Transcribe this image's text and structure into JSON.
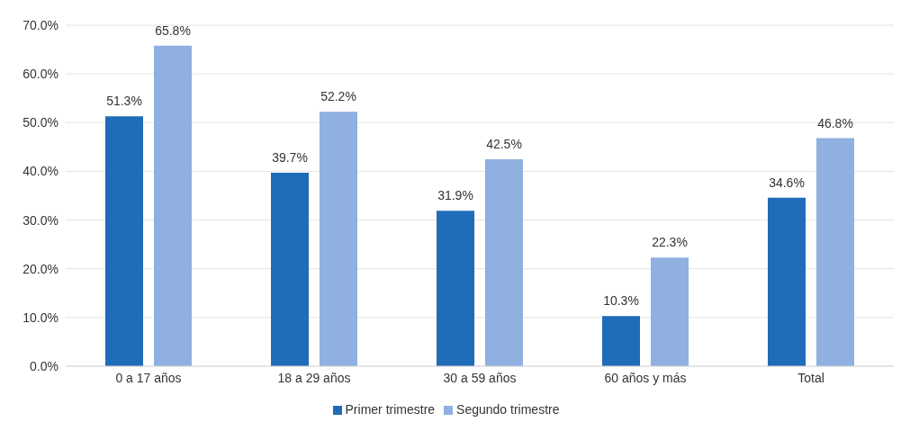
{
  "chart_data": {
    "type": "bar",
    "categories": [
      "0 a 17 años",
      "18 a 29 años",
      "30 a 59 años",
      "60 años y más",
      "Total"
    ],
    "series": [
      {
        "name": "Primer trimestre",
        "color": "#1f6cb9",
        "values": [
          51.3,
          39.7,
          31.9,
          10.3,
          34.6
        ],
        "value_labels": [
          "51.3%",
          "39.7%",
          "31.9%",
          "10.3%",
          "34.6%"
        ]
      },
      {
        "name": "Segundo trimestre",
        "color": "#8fb0e0",
        "values": [
          65.8,
          52.2,
          42.5,
          22.3,
          46.8
        ],
        "value_labels": [
          "65.8%",
          "52.2%",
          "42.5%",
          "22.3%",
          "46.8%"
        ]
      }
    ],
    "ylim": [
      0,
      70
    ],
    "yticks": [
      {
        "value": 0,
        "label": "0.0%"
      },
      {
        "value": 10,
        "label": "10.0%"
      },
      {
        "value": 20,
        "label": "20.0%"
      },
      {
        "value": 30,
        "label": "30.0%"
      },
      {
        "value": 40,
        "label": "40.0%"
      },
      {
        "value": 50,
        "label": "50.0%"
      },
      {
        "value": 60,
        "label": "60.0%"
      },
      {
        "value": 70,
        "label": "70.0%"
      }
    ],
    "grid": "y",
    "legend": "bottom"
  }
}
